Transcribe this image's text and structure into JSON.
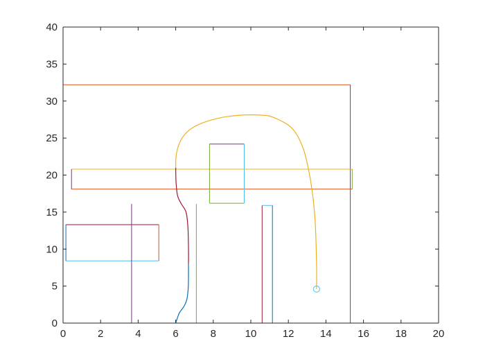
{
  "chart_data": {
    "type": "line",
    "title": "",
    "xlabel": "",
    "ylabel": "",
    "xlim": [
      0,
      20
    ],
    "ylim": [
      0,
      40
    ],
    "xticks": [
      0,
      2,
      4,
      6,
      8,
      10,
      12,
      14,
      16,
      18,
      20
    ],
    "yticks": [
      0,
      5,
      10,
      15,
      20,
      25,
      30,
      35,
      40
    ],
    "grid": false,
    "legend": "none",
    "segments": [
      {
        "color": "#0072BD",
        "x": [
          0,
          20
        ],
        "y": [
          40,
          40
        ]
      },
      {
        "color": "#D95319",
        "x": [
          0,
          0
        ],
        "y": [
          0,
          40
        ]
      },
      {
        "color": "#EDB120",
        "x": [
          20,
          20
        ],
        "y": [
          0,
          40
        ]
      },
      {
        "color": "#7E2F8E",
        "x": [
          0,
          20
        ],
        "y": [
          0,
          0
        ]
      },
      {
        "color": "#D95319",
        "x": [
          0,
          15.3
        ],
        "y": [
          32.2,
          32.2
        ]
      },
      {
        "color": "#7E2F8E",
        "x": [
          15.3,
          15.3
        ],
        "y": [
          0,
          32.2
        ]
      },
      {
        "color": "#EDB120",
        "x": [
          0.45,
          15.4
        ],
        "y": [
          20.8,
          20.8
        ]
      },
      {
        "color": "#D95319",
        "x": [
          0.45,
          15.4
        ],
        "y": [
          18.1,
          18.1
        ]
      },
      {
        "color": "#7E2F8E",
        "x": [
          0.45,
          0.45
        ],
        "y": [
          18.1,
          20.8
        ]
      },
      {
        "color": "#77AC30",
        "x": [
          15.4,
          15.4
        ],
        "y": [
          18.1,
          20.8
        ]
      },
      {
        "color": "#7E2F8E",
        "x": [
          7.8,
          9.65
        ],
        "y": [
          24.2,
          24.2
        ]
      },
      {
        "color": "#77AC30",
        "x": [
          7.8,
          7.8
        ],
        "y": [
          16.2,
          24.2
        ]
      },
      {
        "color": "#4DBEEE",
        "x": [
          9.65,
          9.65
        ],
        "y": [
          16.2,
          24.2
        ]
      },
      {
        "color": "#77AC30",
        "x": [
          7.8,
          9.65
        ],
        "y": [
          16.2,
          16.2
        ]
      },
      {
        "color": "#A2142F",
        "x": [
          0.15,
          5.1
        ],
        "y": [
          13.3,
          13.3
        ]
      },
      {
        "color": "#4DBEEE",
        "x": [
          0.15,
          5.1
        ],
        "y": [
          8.4,
          8.4
        ]
      },
      {
        "color": "#0072BD",
        "x": [
          0.15,
          0.15
        ],
        "y": [
          8.4,
          13.3
        ]
      },
      {
        "color": "#D95319",
        "x": [
          5.1,
          5.1
        ],
        "y": [
          8.4,
          13.3
        ]
      },
      {
        "color": "#7E2F8E",
        "x": [
          3.65,
          3.65
        ],
        "y": [
          0,
          16.1
        ]
      },
      {
        "color": "#77AC30",
        "x": [
          7.1,
          7.1
        ],
        "y": [
          0,
          16.1
        ]
      },
      {
        "color": "#A2142F",
        "x": [
          10.6,
          10.6
        ],
        "y": [
          0,
          15.9
        ]
      },
      {
        "color": "#0072BD",
        "x": [
          11.15,
          11.15
        ],
        "y": [
          0,
          15.9
        ]
      },
      {
        "color": "#4DBEEE",
        "x": [
          10.6,
          11.15
        ],
        "y": [
          15.9,
          15.9
        ]
      }
    ],
    "paths": [
      {
        "color": "#EDB120",
        "x": [
          13.5,
          13.5,
          13.42,
          13.2,
          12.8,
          12.2,
          11.2,
          10.5,
          9.5,
          8.5,
          7.6,
          6.9,
          6.45,
          6.15,
          6.02,
          6.0
        ],
        "y": [
          4.6,
          8.0,
          14.0,
          19.0,
          23.5,
          26.3,
          27.8,
          28.1,
          28.1,
          27.8,
          27.2,
          26.4,
          25.4,
          24.0,
          22.5,
          21.0
        ]
      },
      {
        "color": "#A2142F",
        "x": [
          6.0,
          6.02,
          6.1,
          6.3,
          6.55,
          6.65,
          6.68,
          6.68
        ],
        "y": [
          21.0,
          19.0,
          17.2,
          16.1,
          15.0,
          13.0,
          10.0,
          8.0
        ]
      },
      {
        "color": "#0072BD",
        "x": [
          6.68,
          6.67,
          6.6,
          6.45,
          6.2,
          6.05,
          6.0
        ],
        "y": [
          8.0,
          5.0,
          3.3,
          2.3,
          1.4,
          0.4,
          0.0
        ]
      }
    ],
    "markers": [
      {
        "color": "#4DBEEE",
        "shape": "circle",
        "x": 13.5,
        "y": 4.6
      }
    ]
  }
}
